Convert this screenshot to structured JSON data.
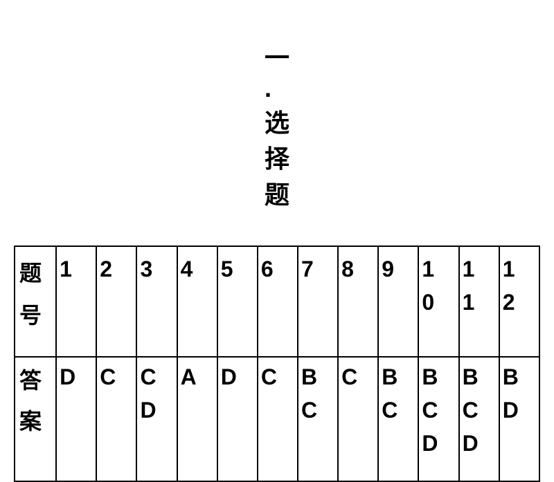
{
  "title": "一. 选择题",
  "table": {
    "headers": {
      "question_number": "题号",
      "answer": "答案"
    },
    "columns": [
      {
        "num": "1",
        "answer": "D"
      },
      {
        "num": "2",
        "answer": "C"
      },
      {
        "num": "3",
        "answer": "CD"
      },
      {
        "num": "4",
        "answer": "A"
      },
      {
        "num": "5",
        "answer": "D"
      },
      {
        "num": "6",
        "answer": "C"
      },
      {
        "num": "7",
        "answer": "BC"
      },
      {
        "num": "8",
        "answer": "C"
      },
      {
        "num": "9",
        "answer": "BC"
      },
      {
        "num": "10",
        "answer": "BCD"
      },
      {
        "num": "11",
        "answer": "BCD"
      },
      {
        "num": "12",
        "answer": "BD"
      }
    ],
    "border_color": "#000000",
    "background_color": "#ffffff",
    "text_color": "#000000",
    "title_fontsize": 36,
    "cell_fontsize": 32
  }
}
